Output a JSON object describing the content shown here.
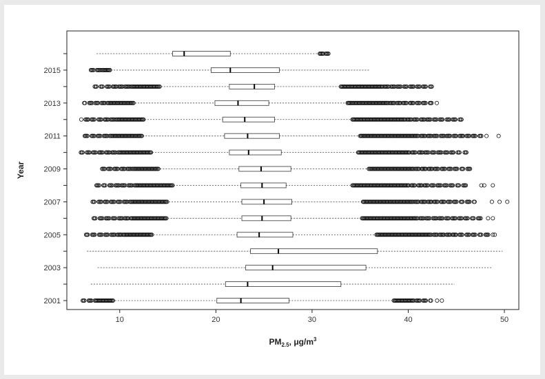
{
  "chart_data": {
    "type": "boxplot",
    "orientation": "horizontal",
    "title": "",
    "xlabel_main": "PM",
    "xlabel_sub": "2.5",
    "xlabel_rest": ", μg/m",
    "xlabel_sup": "3",
    "ylabel": "Year",
    "xlim": [
      4.5,
      51.5
    ],
    "x_ticks": [
      10,
      20,
      30,
      40,
      50
    ],
    "y_tick_labels": [
      "2001",
      "2003",
      "2005",
      "2007",
      "2009",
      "2011",
      "2013",
      "2015"
    ],
    "grid": false,
    "series": [
      {
        "year": 2001,
        "wlo": 9.5,
        "q1": 20.1,
        "median": 22.6,
        "q3": 27.6,
        "whi": 38.5,
        "out_lo": [
          5.7,
          9.3
        ],
        "out_hi": [
          38.5,
          42.4
        ],
        "sparse_hi": [
          43.0,
          43.5
        ]
      },
      {
        "year": 2002,
        "wlo": 7.0,
        "q1": 21.0,
        "median": 23.3,
        "q3": 33.0,
        "whi": 44.8,
        "out_lo": null,
        "out_hi": null
      },
      {
        "year": 2003,
        "wlo": 7.7,
        "q1": 23.1,
        "median": 25.9,
        "q3": 35.6,
        "whi": 48.7,
        "out_lo": null,
        "out_hi": null
      },
      {
        "year": 2004,
        "wlo": 6.6,
        "q1": 23.6,
        "median": 26.5,
        "q3": 36.8,
        "whi": 49.8,
        "out_lo": null,
        "out_hi": null
      },
      {
        "year": 2005,
        "wlo": 13.5,
        "q1": 22.2,
        "median": 24.5,
        "q3": 28.0,
        "whi": 36.7,
        "out_lo": [
          6.5,
          13.4
        ],
        "out_hi": [
          36.7,
          48.5
        ],
        "sparse_hi": [
          48.8,
          49.0
        ]
      },
      {
        "year": 2006,
        "wlo": 15.0,
        "q1": 22.7,
        "median": 24.8,
        "q3": 27.8,
        "whi": 35.2,
        "out_lo": [
          7.2,
          14.9
        ],
        "out_hi": [
          35.2,
          47.8
        ],
        "sparse_hi": [
          48.3,
          48.8
        ]
      },
      {
        "year": 2007,
        "wlo": 15.1,
        "q1": 22.7,
        "median": 25.0,
        "q3": 27.9,
        "whi": 35.3,
        "out_lo": [
          7.0,
          15.0
        ],
        "out_hi": [
          35.3,
          47.0
        ],
        "sparse_hi": [
          48.7,
          49.5,
          50.3
        ]
      },
      {
        "year": 2008,
        "wlo": 15.6,
        "q1": 22.6,
        "median": 24.8,
        "q3": 27.3,
        "whi": 34.2,
        "out_lo": [
          7.4,
          15.5
        ],
        "out_hi": [
          34.2,
          46.3
        ],
        "sparse_hi": [
          47.6,
          47.9,
          48.8
        ]
      },
      {
        "year": 2009,
        "wlo": 14.2,
        "q1": 22.4,
        "median": 24.7,
        "q3": 27.8,
        "whi": 35.9,
        "out_lo": [
          7.9,
          14.1
        ],
        "out_hi": [
          35.9,
          46.5
        ],
        "sparse_hi": []
      },
      {
        "year": 2010,
        "wlo": 13.4,
        "q1": 21.4,
        "median": 23.4,
        "q3": 26.8,
        "whi": 34.8,
        "out_lo": [
          5.6,
          13.3
        ],
        "out_hi": [
          34.8,
          46.2
        ],
        "sparse_hi": []
      },
      {
        "year": 2011,
        "wlo": 12.4,
        "q1": 20.9,
        "median": 23.3,
        "q3": 26.6,
        "whi": 35.0,
        "out_lo": [
          6.0,
          12.3
        ],
        "out_hi": [
          35.0,
          48.2
        ],
        "sparse_hi": [
          49.4
        ]
      },
      {
        "year": 2012,
        "wlo": 12.6,
        "q1": 20.7,
        "median": 23.0,
        "q3": 26.1,
        "whi": 34.2,
        "out_lo": [
          6.0,
          12.5
        ],
        "out_hi": [
          34.2,
          45.8
        ],
        "sparse_hi": []
      },
      {
        "year": 2013,
        "wlo": 11.6,
        "q1": 19.9,
        "median": 22.3,
        "q3": 25.5,
        "whi": 33.7,
        "out_lo": [
          6.3,
          11.5
        ],
        "out_hi": [
          33.7,
          43.0
        ],
        "sparse_hi": []
      },
      {
        "year": 2014,
        "wlo": 14.3,
        "q1": 21.4,
        "median": 24.0,
        "q3": 26.1,
        "whi": 33.0,
        "out_lo": [
          7.4,
          14.2
        ],
        "out_hi": [
          33.0,
          42.8
        ],
        "sparse_hi": []
      },
      {
        "year": 2015,
        "wlo": 9.1,
        "q1": 19.5,
        "median": 21.5,
        "q3": 26.6,
        "whi": 36.0,
        "out_lo": [
          7.0,
          9.0
        ],
        "out_hi": null
      },
      {
        "year": 2016,
        "wlo": 7.6,
        "q1": 15.5,
        "median": 16.7,
        "q3": 21.5,
        "whi": 30.8,
        "out_lo": null,
        "out_hi": [
          30.8,
          31.7
        ]
      }
    ]
  }
}
